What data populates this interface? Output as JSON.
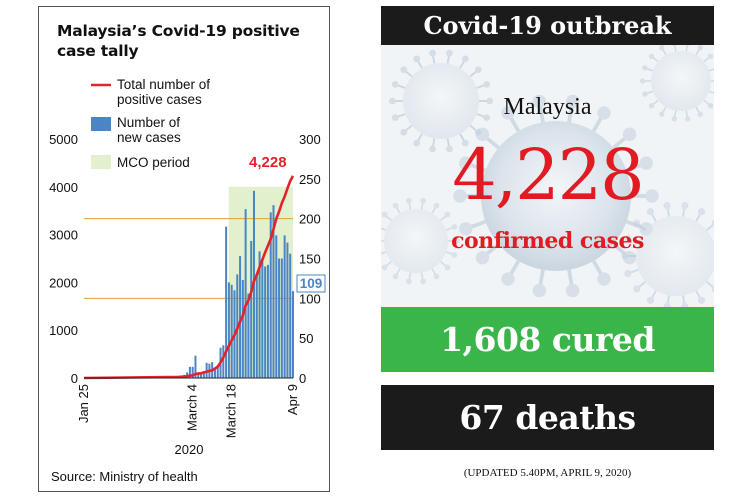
{
  "chart": {
    "title": "Malaysia’s Covid-19 positive case tally",
    "source": "Source: Ministry of health",
    "year_label": "2020"
  },
  "chart_data": {
    "type": "bar+line",
    "title": "Malaysia’s Covid-19 positive case tally",
    "legend": [
      {
        "label": "Total number of positive cases",
        "color": "#e3222a",
        "kind": "line"
      },
      {
        "label": "Number of new cases",
        "color": "#4a86c5",
        "kind": "bar"
      },
      {
        "label": "MCO period",
        "color": "#e3f0cd",
        "kind": "area"
      }
    ],
    "legend_placement": "top-left",
    "x_tick_labels": [
      "Jan 25",
      "March 4",
      "March 18",
      "Apr 9"
    ],
    "x_range": [
      "2020-01-25",
      "2020-04-09"
    ],
    "left_axis": {
      "ticks": [
        0,
        1000,
        2000,
        3000,
        4000,
        5000
      ],
      "ylim": [
        0,
        5000
      ],
      "series": "Total number of positive cases"
    },
    "right_axis": {
      "ticks": [
        0,
        50,
        100,
        150,
        200,
        250,
        300
      ],
      "ylim": [
        0,
        300
      ],
      "series": "Number of new cases"
    },
    "mco_start": "2020-03-18",
    "reference_lines_right_axis": [
      100,
      200
    ],
    "annotations": {
      "total_last": "4,228",
      "new_last": "109"
    },
    "dates": [
      "03-01",
      "03-02",
      "03-03",
      "03-04",
      "03-05",
      "03-06",
      "03-07",
      "03-08",
      "03-09",
      "03-10",
      "03-11",
      "03-12",
      "03-13",
      "03-14",
      "03-15",
      "03-16",
      "03-17",
      "03-18",
      "03-19",
      "03-20",
      "03-21",
      "03-22",
      "03-23",
      "03-24",
      "03-25",
      "03-26",
      "03-27",
      "03-28",
      "03-29",
      "03-30",
      "03-31",
      "04-01",
      "04-02",
      "04-03",
      "04-04",
      "04-05",
      "04-06",
      "04-07",
      "04-08",
      "04-09"
    ],
    "new_cases": [
      4,
      7,
      14,
      14,
      28,
      5,
      6,
      6,
      19,
      18,
      20,
      11,
      14,
      38,
      41,
      190,
      120,
      117,
      110,
      130,
      153,
      123,
      212,
      106,
      172,
      235,
      130,
      159,
      150,
      140,
      142,
      208,
      217,
      179,
      150,
      150,
      179,
      170,
      156,
      109
    ],
    "total_cases": [
      29,
      36,
      50,
      50,
      83,
      93,
      99,
      117,
      129,
      149,
      158,
      197,
      238,
      324,
      428,
      553,
      673,
      790,
      900,
      1030,
      1183,
      1306,
      1518,
      1624,
      1796,
      2031,
      2161,
      2320,
      2470,
      2626,
      2766,
      2908,
      3116,
      3333,
      3483,
      3662,
      3793,
      3963,
      4119,
      4228
    ]
  },
  "info": {
    "header": "Covid-19 outbreak",
    "country": "Malaysia",
    "cases": "4,228",
    "cases_label": "confirmed cases",
    "cured": "1,608 cured",
    "deaths": "67 deaths",
    "updated": "(UPDATED 5.40PM, APRIL 9, 2020)"
  },
  "colors": {
    "total_line": "#e3222a",
    "new_bars": "#4a86c5",
    "mco_area": "#e3f0cd",
    "reference_line": "#e0a030",
    "cases_red": "#e01b22",
    "cured_green": "#3ab54a",
    "dark_band": "#1b1b1b"
  }
}
